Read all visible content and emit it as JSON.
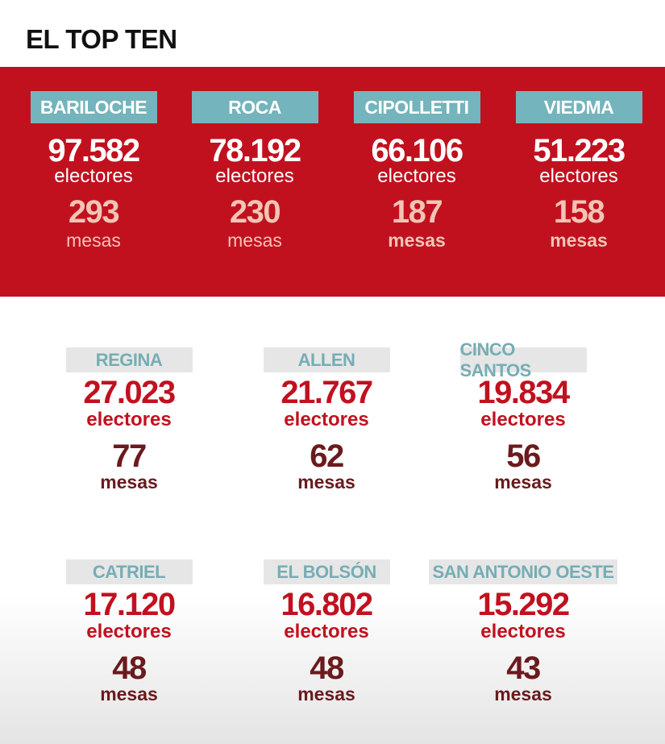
{
  "title": "EL TOP TEN",
  "top": [
    {
      "name": "BARILOCHE",
      "electores": "97.582",
      "electores_label": "electores",
      "mesas": "293",
      "mesas_label": "mesas"
    },
    {
      "name": "ROCA",
      "electores": "78.192",
      "electores_label": "electores",
      "mesas": "230",
      "mesas_label": "mesas"
    },
    {
      "name": "CIPOLLETTI",
      "electores": "66.106",
      "electores_label": "electores",
      "mesas": "187",
      "mesas_label": "mesas"
    },
    {
      "name": "VIEDMA",
      "electores": "51.223",
      "electores_label": "electores",
      "mesas": "158",
      "mesas_label": "mesas"
    }
  ],
  "rest": [
    {
      "name": "REGINA",
      "electores": "27.023",
      "electores_label": "electores",
      "mesas": "77",
      "mesas_label": "mesas"
    },
    {
      "name": "ALLEN",
      "electores": "21.767",
      "electores_label": "electores",
      "mesas": "62",
      "mesas_label": "mesas"
    },
    {
      "name": "CINCO SANTOS",
      "electores": "19.834",
      "electores_label": "electores",
      "mesas": "56",
      "mesas_label": "mesas"
    },
    {
      "name": "CATRIEL",
      "electores": "17.120",
      "electores_label": "electores",
      "mesas": "48",
      "mesas_label": "mesas"
    },
    {
      "name": "EL BOLSÓN",
      "electores": "16.802",
      "electores_label": "electores",
      "mesas": "48",
      "mesas_label": "mesas"
    },
    {
      "name": "SAN ANTONIO OESTE",
      "electores": "15.292",
      "electores_label": "electores",
      "mesas": "43",
      "mesas_label": "mesas"
    }
  ]
}
